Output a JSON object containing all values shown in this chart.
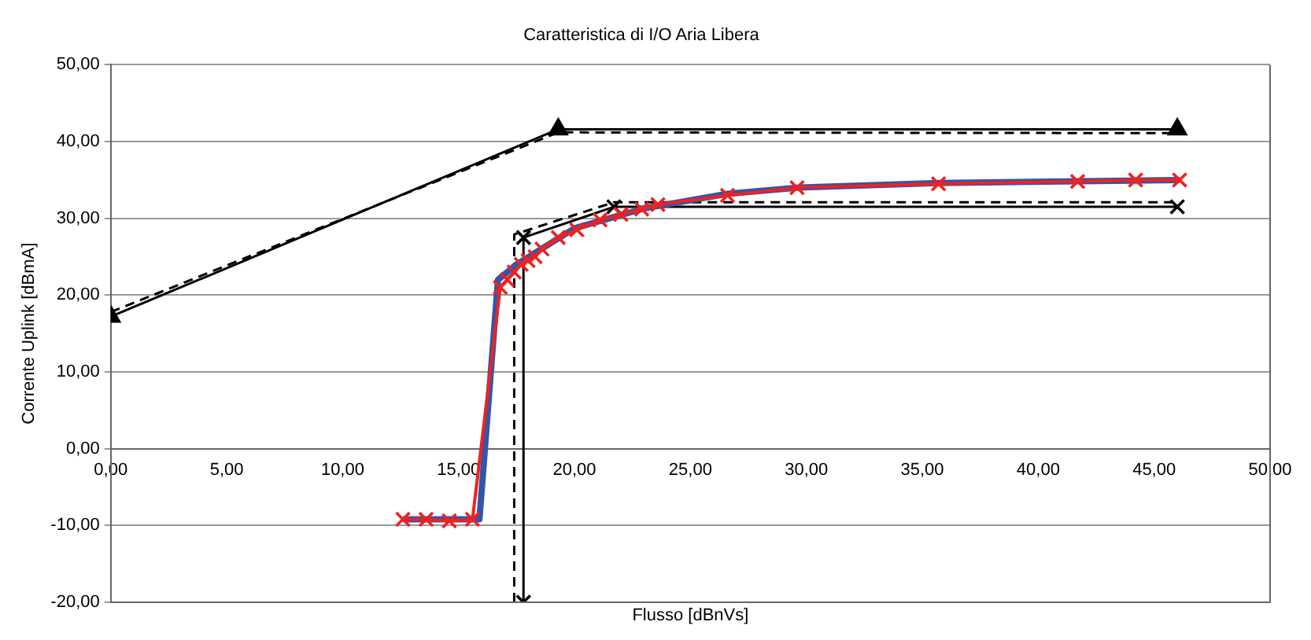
{
  "chart_data": {
    "type": "line",
    "title": "Caratteristica di I/O Aria Libera",
    "xlabel": "Flusso [dBnVs]",
    "ylabel": "Corrente Uplink [dBmA]",
    "xlim": [
      0,
      50
    ],
    "ylim": [
      -20,
      50
    ],
    "xticks": [
      {
        "value": 0,
        "label": "0,00"
      },
      {
        "value": 5,
        "label": "5,00"
      },
      {
        "value": 10,
        "label": "10,00"
      },
      {
        "value": 15,
        "label": "15,00"
      },
      {
        "value": 20,
        "label": "20,00"
      },
      {
        "value": 25,
        "label": "25,00"
      },
      {
        "value": 30,
        "label": "30,00"
      },
      {
        "value": 35,
        "label": "35,00"
      },
      {
        "value": 40,
        "label": "40,00"
      },
      {
        "value": 45,
        "label": "45,00"
      },
      {
        "value": 50,
        "label": "50,00"
      }
    ],
    "yticks": [
      {
        "value": -20,
        "label": "-20,00"
      },
      {
        "value": -10,
        "label": "-10,00"
      },
      {
        "value": 0,
        "label": "0,00"
      },
      {
        "value": 10,
        "label": "10,00"
      },
      {
        "value": 20,
        "label": "20,00"
      },
      {
        "value": 30,
        "label": "30,00"
      },
      {
        "value": 40,
        "label": "40,00"
      },
      {
        "value": 50,
        "label": "50,00"
      }
    ],
    "grid": "y",
    "legend": false,
    "series": [
      {
        "color": "#000000",
        "marker": "triangle",
        "line_style": "solid",
        "x": [
          0,
          19.3,
          46
        ],
        "values": [
          17.2,
          41.6,
          41.6
        ]
      },
      {
        "color": "#000000",
        "marker": "none",
        "line_style": "dashed",
        "x": [
          0,
          19.3,
          46
        ],
        "values": [
          17.8,
          41.2,
          41.1
        ]
      },
      {
        "color": "#000000",
        "marker": "none",
        "line_style": "dashed",
        "x": [
          17.4,
          17.4,
          21.7,
          46
        ],
        "values": [
          -20,
          27.9,
          32.1,
          32.1
        ]
      },
      {
        "color": "#000000",
        "marker": "cross",
        "line_style": "solid",
        "x": [
          17.8,
          17.8,
          21.7,
          46
        ],
        "values": [
          -20,
          27.5,
          31.5,
          31.5
        ]
      },
      {
        "color": "#3355aa",
        "marker": "none",
        "line_style": "solid",
        "x": [
          12.6,
          15.9,
          16.7,
          17.5,
          20,
          23,
          26.6,
          29.6,
          35.7,
          46.1
        ],
        "values": [
          -9.2,
          -9.2,
          22,
          24,
          28.7,
          31.3,
          33.2,
          34,
          34.6,
          35
        ]
      },
      {
        "color": "#ee2222",
        "marker": "cross",
        "line_style": "solid",
        "x": [
          12.6,
          13.6,
          14.6,
          15.6,
          16.8,
          17.1,
          17.4,
          17.7,
          18.0,
          18.3,
          18.6,
          19.3,
          20.1,
          21.1,
          22.0,
          22.9,
          23.6,
          26.6,
          29.6,
          35.7,
          41.7,
          44.2,
          46.1
        ],
        "values": [
          -9.2,
          -9.2,
          -9.4,
          -9.2,
          21,
          22,
          23,
          24,
          24.5,
          25,
          26,
          27.5,
          28.5,
          29.8,
          30.5,
          31.2,
          31.8,
          33,
          34,
          34.5,
          34.8,
          35,
          35
        ]
      }
    ]
  }
}
